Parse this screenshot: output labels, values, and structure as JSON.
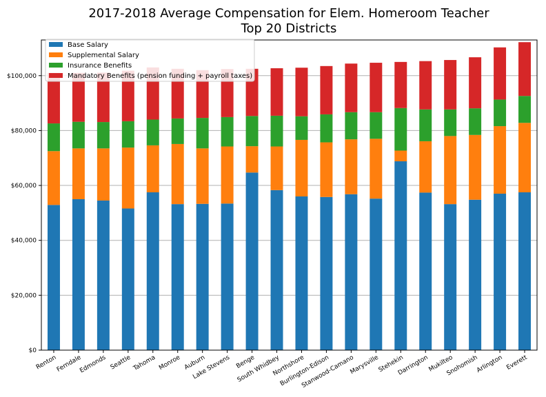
{
  "chart_data": {
    "type": "bar",
    "stacked": true,
    "title": "2017-2018 Average Compensation for Elem. Homeroom Teacher",
    "subtitle": "Top 20 Districts",
    "xlabel": "",
    "ylabel": "",
    "ylim": [
      0,
      113000
    ],
    "yticks": [
      "$0",
      "$20,000",
      "$40,000",
      "$60,000",
      "$80,000",
      "$100,000"
    ],
    "ytick_values": [
      0,
      20000,
      40000,
      60000,
      80000,
      100000
    ],
    "grid": "y",
    "legend_position": "top-left",
    "categories": [
      "Renton",
      "Ferndale",
      "Edmonds",
      "Seattle",
      "Tahoma",
      "Monroe",
      "Auburn",
      "Lake Stevens",
      "Benge",
      "South Whidbey",
      "Northshore",
      "Burlington-Edison",
      "Stanwood-Camano",
      "Marysville",
      "Stehekin",
      "Darrington",
      "Mukilteo",
      "Snohomish",
      "Arlington",
      "Everett"
    ],
    "series": [
      {
        "name": "Base Salary",
        "color": "#1f77b4",
        "values": [
          52900,
          55000,
          54500,
          51600,
          57500,
          53200,
          53300,
          53400,
          64700,
          58300,
          56000,
          55800,
          56800,
          55200,
          68800,
          57400,
          53200,
          54800,
          57000,
          57500
        ]
      },
      {
        "name": "Supplemental Salary",
        "color": "#ff7f0e",
        "values": [
          19600,
          18500,
          19000,
          22200,
          17100,
          21900,
          20200,
          20800,
          9600,
          15900,
          20600,
          19900,
          20000,
          21800,
          3900,
          18700,
          24800,
          23600,
          24600,
          25300
        ]
      },
      {
        "name": "Insurance Benefits",
        "color": "#2ca02c",
        "values": [
          10100,
          9700,
          9600,
          9600,
          9400,
          9300,
          11100,
          10700,
          11000,
          11200,
          8600,
          10200,
          9900,
          9700,
          15500,
          11600,
          9700,
          9700,
          9700,
          9800
        ]
      },
      {
        "name": "Mandatory Benefits (pension funding + payroll taxes)",
        "color": "#d62728",
        "values": [
          18400,
          17800,
          18000,
          18400,
          19000,
          18100,
          17400,
          17500,
          17200,
          17300,
          17700,
          17600,
          17700,
          18000,
          16800,
          17600,
          18000,
          18600,
          19000,
          19600
        ]
      }
    ]
  }
}
